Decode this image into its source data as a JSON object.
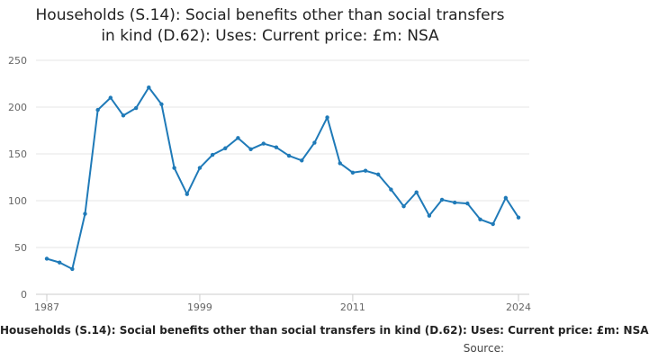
{
  "title_lines": [
    "Households (S.14): Social benefits other than social transfers",
    "in kind (D.62): Uses: Current price: £m: NSA"
  ],
  "legend_text": "Households (S.14): Social benefits other than social transfers in kind (D.62): Uses: Current price: £m: NSA",
  "source_label": "Source:",
  "chart_data": {
    "type": "line",
    "title": "Households (S.14): Social benefits other than social transfers in kind (D.62): Uses: Current price: £m: NSA",
    "x": [
      1987,
      1988,
      1989,
      1990,
      1991,
      1992,
      1993,
      1994,
      1995,
      1996,
      1997,
      1998,
      1999,
      2000,
      2001,
      2002,
      2003,
      2004,
      2005,
      2006,
      2007,
      2008,
      2009,
      2010,
      2011,
      2012,
      2013,
      2014,
      2015,
      2016,
      2017,
      2018,
      2019,
      2020,
      2021,
      2022,
      2023,
      2024
    ],
    "values": [
      38,
      34,
      27,
      86,
      197,
      210,
      191,
      199,
      221,
      203,
      135,
      107,
      135,
      149,
      156,
      167,
      155,
      161,
      157,
      148,
      143,
      162,
      189,
      140,
      130,
      132,
      128,
      112,
      94,
      109,
      84,
      101,
      98,
      97,
      80,
      75,
      103,
      82
    ],
    "x_ticks": [
      "1987",
      "1999",
      "2011",
      "2024"
    ],
    "y_ticks": [
      0,
      50,
      100,
      150,
      200,
      250
    ],
    "ylim": [
      0,
      250
    ],
    "xlim": [
      1987,
      2024
    ],
    "grid": true,
    "line_color": "#1f7ab8",
    "legend_position": "bottom"
  }
}
